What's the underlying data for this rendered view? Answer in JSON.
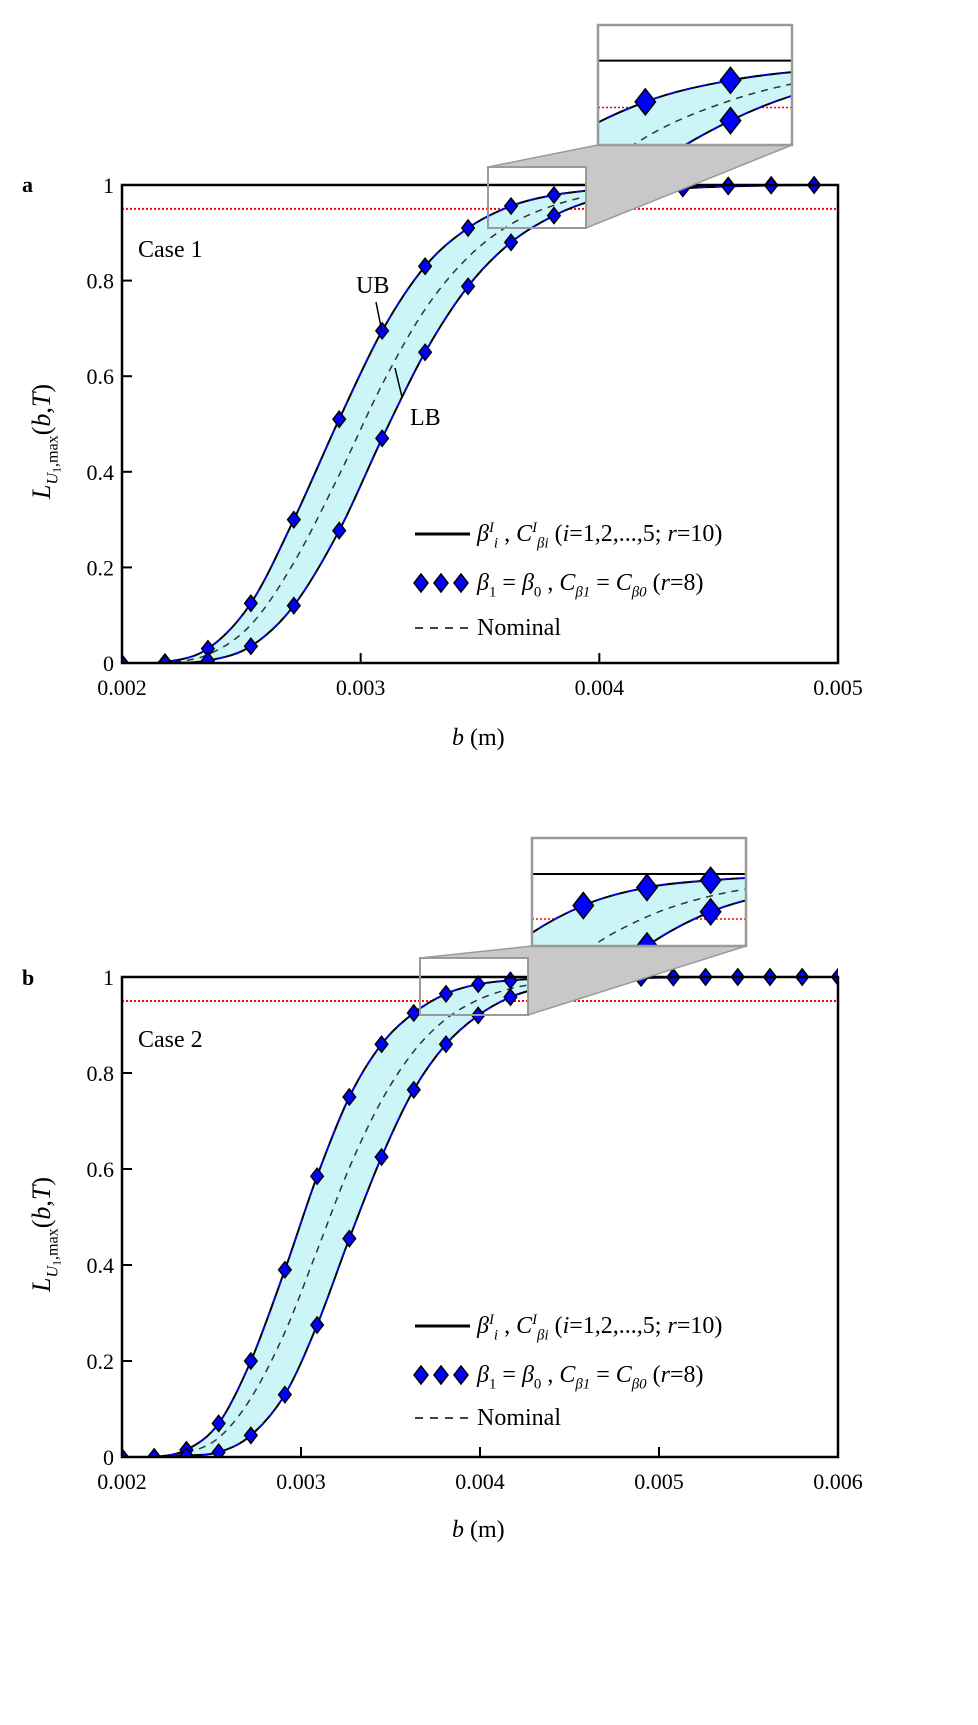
{
  "chart_data": [
    {
      "type": "line",
      "panel_label": "a",
      "case_label": "Case 1",
      "xlabel": [
        {
          "t": "b",
          "i": true
        },
        {
          "t": " (m)"
        }
      ],
      "ylabel": [
        {
          "t": "L",
          "i": true
        },
        {
          "t": "U",
          "i": true,
          "sub": true
        },
        {
          "t": "1",
          "sub2": true
        },
        {
          "t": ",max",
          "sub": true
        },
        {
          "t": "("
        },
        {
          "t": "b",
          "i": true
        },
        {
          "t": ","
        },
        {
          "t": "T",
          "i": true
        },
        {
          "t": ")"
        }
      ],
      "xlim": [
        0.002,
        0.005
      ],
      "ylim": [
        0,
        1
      ],
      "xticks": [
        "0.002",
        "0.003",
        "0.004",
        "0.005"
      ],
      "xtick_values": [
        0.002,
        0.003,
        0.004,
        0.005
      ],
      "yticks": [
        "0",
        "0.2",
        "0.4",
        "0.6",
        "0.8",
        "1"
      ],
      "ytick_values": [
        0,
        0.2,
        0.4,
        0.6,
        0.8,
        1
      ],
      "threshold": 0.95,
      "threshold_color": "#ff0000",
      "band_color": "#ccf5f8",
      "marker_color": "#0000ff",
      "x": [
        0.002,
        0.00218,
        0.00236,
        0.00254,
        0.00272,
        0.00291,
        0.00309,
        0.00327,
        0.00345,
        0.00363,
        0.00381,
        0.00399,
        0.00417,
        0.00435,
        0.00454,
        0.00472,
        0.0049
      ],
      "upper_bound": [
        0,
        0.002,
        0.03,
        0.125,
        0.3,
        0.51,
        0.695,
        0.83,
        0.91,
        0.956,
        0.979,
        0.99,
        0.995,
        0.998,
        0.999,
        1,
        1
      ],
      "lower_bound": [
        0,
        0,
        0.005,
        0.035,
        0.12,
        0.277,
        0.47,
        0.65,
        0.788,
        0.88,
        0.936,
        0.97,
        0.985,
        0.993,
        0.997,
        0.999,
        1
      ],
      "annotations": {
        "ub": "UB",
        "lb": "LB"
      },
      "zoom_region": {
        "x": [
          0.00353,
          0.00394
        ],
        "y": [
          0.91,
          1.038
        ]
      },
      "legend": [
        {
          "style": "solid",
          "label": [
            {
              "t": "β",
              "i": true
            },
            {
              "t": "I",
              "i": true,
              "sup": true
            },
            {
              "t": "i",
              "i": true,
              "sub": true
            },
            {
              "t": " , "
            },
            {
              "t": "C",
              "i": true
            },
            {
              "t": "I",
              "i": true,
              "sup": true
            },
            {
              "t": "βi",
              "i": true,
              "sub": true
            },
            {
              "t": "  ("
            },
            {
              "t": "i",
              "i": true
            },
            {
              "t": "=1,2,...,5; "
            },
            {
              "t": "r",
              "i": true
            },
            {
              "t": "=10)"
            }
          ]
        },
        {
          "style": "diamonds",
          "label": [
            {
              "t": "β",
              "i": true
            },
            {
              "t": "1",
              "sub": true
            },
            {
              "t": " = "
            },
            {
              "t": "β",
              "i": true
            },
            {
              "t": "0",
              "sub": true
            },
            {
              "t": " , "
            },
            {
              "t": "C",
              "i": true
            },
            {
              "t": "β1",
              "i": true,
              "sub": true
            },
            {
              "t": " = "
            },
            {
              "t": "C",
              "i": true
            },
            {
              "t": "β0",
              "i": true,
              "sub": true
            },
            {
              "t": " ("
            },
            {
              "t": "r",
              "i": true
            },
            {
              "t": "=8)"
            }
          ]
        },
        {
          "style": "dashed",
          "label": [
            {
              "t": "Nominal"
            }
          ]
        }
      ]
    },
    {
      "type": "line",
      "panel_label": "b",
      "case_label": "Case 2",
      "xlabel": [
        {
          "t": "b",
          "i": true
        },
        {
          "t": " (m)"
        }
      ],
      "ylabel": [
        {
          "t": "L",
          "i": true
        },
        {
          "t": "U",
          "i": true,
          "sub": true
        },
        {
          "t": "1",
          "sub2": true
        },
        {
          "t": ",max",
          "sub": true
        },
        {
          "t": "("
        },
        {
          "t": "b",
          "i": true
        },
        {
          "t": ","
        },
        {
          "t": "T",
          "i": true
        },
        {
          "t": ")"
        }
      ],
      "xlim": [
        0.002,
        0.006
      ],
      "ylim": [
        0,
        1
      ],
      "xticks": [
        "0.002",
        "0.003",
        "0.004",
        "0.005",
        "0.006"
      ],
      "xtick_values": [
        0.002,
        0.003,
        0.004,
        0.005,
        0.006
      ],
      "yticks": [
        "0",
        "0.2",
        "0.4",
        "0.6",
        "0.8",
        "1"
      ],
      "ytick_values": [
        0,
        0.2,
        0.4,
        0.6,
        0.8,
        1
      ],
      "threshold": 0.95,
      "threshold_color": "#ff0000",
      "band_color": "#ccf5f8",
      "marker_color": "#0000ff",
      "x": [
        0.002,
        0.00218,
        0.00236,
        0.00254,
        0.00272,
        0.00291,
        0.00309,
        0.00327,
        0.00345,
        0.00363,
        0.00381,
        0.00399,
        0.00417,
        0.00435,
        0.00454,
        0.00472,
        0.0049,
        0.00508,
        0.00526,
        0.00544,
        0.00562,
        0.0058,
        0.006
      ],
      "upper_bound": [
        0,
        0,
        0.015,
        0.07,
        0.2,
        0.39,
        0.585,
        0.75,
        0.86,
        0.925,
        0.965,
        0.985,
        0.993,
        0.997,
        0.999,
        1,
        1,
        1,
        1,
        1,
        1,
        1,
        1
      ],
      "lower_bound": [
        0,
        0,
        0.003,
        0.01,
        0.045,
        0.13,
        0.275,
        0.455,
        0.625,
        0.765,
        0.86,
        0.92,
        0.958,
        0.978,
        0.99,
        0.995,
        0.998,
        0.999,
        1,
        1,
        1,
        1,
        1
      ],
      "zoom_region": {
        "x": [
          0.003665,
          0.00427
        ],
        "y": [
          0.92,
          1.04
        ]
      },
      "legend": [
        {
          "style": "solid",
          "label": [
            {
              "t": "β",
              "i": true
            },
            {
              "t": "I",
              "i": true,
              "sup": true
            },
            {
              "t": "i",
              "i": true,
              "sub": true
            },
            {
              "t": " , "
            },
            {
              "t": "C",
              "i": true
            },
            {
              "t": "I",
              "i": true,
              "sup": true
            },
            {
              "t": "βi",
              "i": true,
              "sub": true
            },
            {
              "t": "  ("
            },
            {
              "t": "i",
              "i": true
            },
            {
              "t": "=1,2,...,5; "
            },
            {
              "t": "r",
              "i": true
            },
            {
              "t": "=10)"
            }
          ]
        },
        {
          "style": "diamonds",
          "label": [
            {
              "t": "β",
              "i": true
            },
            {
              "t": "1",
              "sub": true
            },
            {
              "t": " = "
            },
            {
              "t": "β",
              "i": true
            },
            {
              "t": "0",
              "sub": true
            },
            {
              "t": " , "
            },
            {
              "t": "C",
              "i": true
            },
            {
              "t": "β1",
              "i": true,
              "sub": true
            },
            {
              "t": " = "
            },
            {
              "t": "C",
              "i": true
            },
            {
              "t": "β0",
              "i": true,
              "sub": true
            },
            {
              "t": " ("
            },
            {
              "t": "r",
              "i": true
            },
            {
              "t": "=8)"
            }
          ]
        },
        {
          "style": "dashed",
          "label": [
            {
              "t": "Nominal"
            }
          ]
        }
      ]
    }
  ]
}
